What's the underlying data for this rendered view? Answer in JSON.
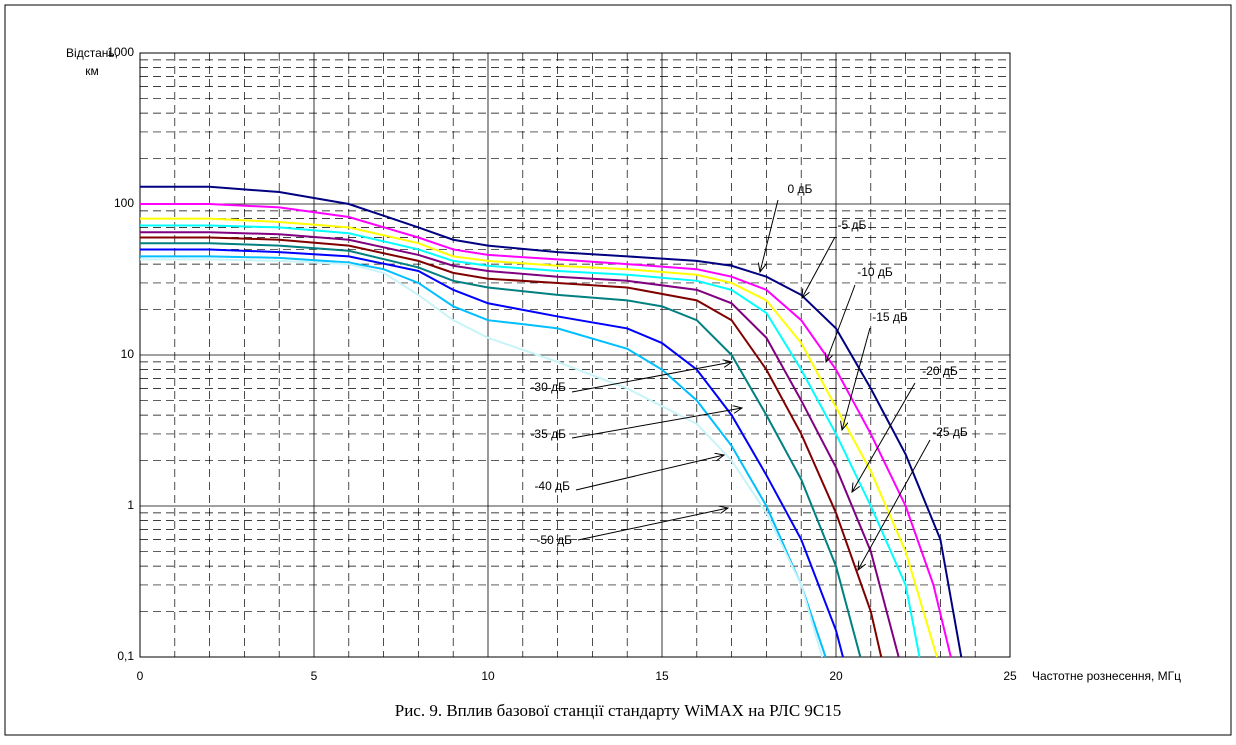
{
  "chart_data": {
    "type": "line",
    "caption": "Рис. 9. Вплив базової станції стандарту WiMAX на РЛС 9С15",
    "ylabel": [
      "Відстань,",
      "км"
    ],
    "xlabel": "Частотне рознесення, МГц",
    "xlim": [
      0,
      25
    ],
    "xticks": [
      0,
      5,
      10,
      15,
      20,
      25
    ],
    "ylim": [
      0.1,
      1000
    ],
    "yticks": [
      {
        "value": 0.1,
        "label": "0,1"
      },
      1,
      10,
      100,
      1000
    ],
    "log_y": true,
    "grid": true,
    "series": [
      {
        "name": "0 дБ",
        "color": "#000080",
        "x": [
          0,
          2,
          4,
          6,
          8,
          9,
          10,
          12,
          14,
          16,
          17,
          18,
          19,
          20,
          21,
          22,
          23,
          23.6
        ],
        "values": [
          130,
          130,
          120,
          100,
          70,
          58,
          53,
          48,
          45,
          42,
          39,
          33,
          25,
          15,
          6,
          2.2,
          0.6,
          0.1
        ]
      },
      {
        "name": "-5 дБ",
        "color": "#ff00ff",
        "x": [
          0,
          2,
          4,
          6,
          8,
          9,
          10,
          12,
          14,
          16,
          17,
          18,
          19,
          20,
          21,
          22,
          22.8,
          23.3
        ],
        "values": [
          100,
          100,
          95,
          82,
          60,
          50,
          46,
          43,
          40,
          37,
          33,
          27,
          17,
          8,
          3,
          1,
          0.3,
          0.1
        ]
      },
      {
        "name": "-10 дБ",
        "color": "#ffff00",
        "x": [
          0,
          2,
          4,
          6,
          8,
          9,
          10,
          12,
          14,
          16,
          17,
          18,
          19,
          20,
          21,
          22,
          22.9
        ],
        "values": [
          80,
          80,
          76,
          70,
          55,
          45,
          42,
          39,
          37,
          34,
          30,
          23,
          12,
          4.5,
          1.7,
          0.5,
          0.1
        ]
      },
      {
        "name": "-15 дБ",
        "color": "#00ffff",
        "x": [
          0,
          2,
          4,
          6,
          8,
          9,
          10,
          12,
          14,
          16,
          17,
          18,
          19,
          20,
          21,
          22,
          22.4
        ],
        "values": [
          72,
          72,
          70,
          64,
          50,
          42,
          39,
          36,
          34,
          31,
          27,
          19,
          8,
          3,
          1,
          0.3,
          0.1
        ]
      },
      {
        "name": "-20 дБ",
        "color": "#800080",
        "x": [
          0,
          2,
          4,
          6,
          8,
          9,
          10,
          12,
          14,
          16,
          17,
          18,
          19,
          20,
          21,
          21.8
        ],
        "values": [
          65,
          65,
          63,
          58,
          46,
          39,
          36,
          33,
          31,
          27,
          22,
          13,
          5,
          1.8,
          0.5,
          0.1
        ]
      },
      {
        "name": "-25 дБ",
        "color": "#800000",
        "x": [
          0,
          2,
          4,
          6,
          8,
          9,
          10,
          12,
          14,
          16,
          17,
          18,
          19,
          20,
          21,
          21.3
        ],
        "values": [
          60,
          60,
          58,
          53,
          42,
          35,
          32,
          30,
          28,
          23,
          17,
          8,
          3,
          0.9,
          0.2,
          0.1
        ]
      },
      {
        "name": "-30 дБ",
        "color": "#008080",
        "x": [
          0,
          2,
          4,
          6,
          8,
          9,
          10,
          12,
          14,
          15,
          16,
          17,
          18,
          19,
          20,
          20.7
        ],
        "values": [
          55,
          55,
          53,
          49,
          38,
          31,
          28,
          25,
          23,
          21,
          17,
          10,
          4,
          1.5,
          0.4,
          0.1
        ]
      },
      {
        "name": "-35 дБ",
        "color": "#0000ff",
        "x": [
          0,
          2,
          4,
          6,
          8,
          9,
          10,
          12,
          14,
          15,
          16,
          17,
          18,
          19,
          20,
          20.2
        ],
        "values": [
          50,
          50,
          48,
          45,
          36,
          27,
          22,
          18,
          15,
          12,
          8,
          4,
          1.6,
          0.6,
          0.15,
          0.1
        ]
      },
      {
        "name": "-40 дБ",
        "color": "#00bfff",
        "x": [
          0,
          2,
          4,
          6,
          7,
          8,
          9,
          10,
          11,
          12,
          14,
          15,
          16,
          17,
          18,
          19,
          19.7
        ],
        "values": [
          45,
          45,
          44,
          41,
          37,
          30,
          21,
          17,
          16,
          15,
          11,
          8,
          5,
          2.5,
          1,
          0.3,
          0.1
        ]
      },
      {
        "name": "-50 дБ",
        "color": "#c8f4f8",
        "x": [
          0,
          2,
          4,
          6,
          7,
          8,
          9,
          10,
          12,
          14,
          16,
          17,
          18,
          19,
          19.6
        ],
        "values": [
          43,
          43,
          42,
          40,
          35,
          25,
          17,
          13,
          9,
          6,
          3.5,
          2,
          0.9,
          0.3,
          0.1
        ]
      }
    ]
  }
}
